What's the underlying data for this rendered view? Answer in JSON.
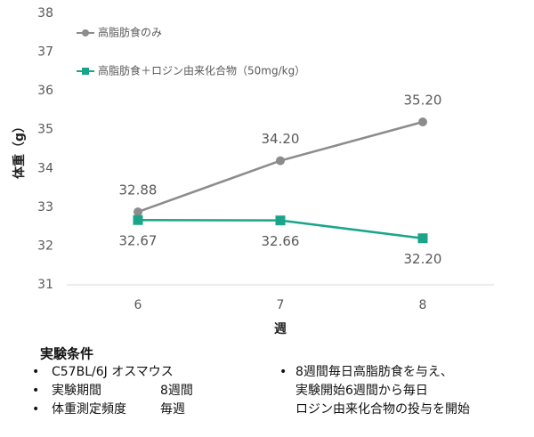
{
  "chart_data": {
    "type": "line",
    "x_label": "週",
    "y_label": "体重（g）",
    "categories": [
      "6",
      "7",
      "8"
    ],
    "series": [
      {
        "name": "高脂肪食のみ",
        "color": "#8c8c8c",
        "marker": "circle",
        "values": [
          32.88,
          34.2,
          35.2
        ],
        "value_labels": [
          "32.88",
          "34.20",
          "35.20"
        ]
      },
      {
        "name": "高脂肪食＋ロジン由来化合物（50mg/kg）",
        "color": "#1aa58a",
        "marker": "square",
        "values": [
          32.67,
          32.66,
          32.2
        ],
        "value_labels": [
          "32.67",
          "32.66",
          "32.20"
        ]
      }
    ],
    "ylim": [
      31,
      38
    ],
    "yticks": [
      31,
      32,
      33,
      34,
      35,
      36,
      37,
      38
    ],
    "grid": false
  },
  "notes": {
    "title": "実験条件",
    "left": [
      [
        "C57BL/6J オスマウス"
      ],
      [
        "実験期間",
        "8週間"
      ],
      [
        "体重測定頻度",
        "毎週"
      ]
    ],
    "right": [
      "8週間毎日高脂肪食を与え、",
      "実験開始6週間から毎日",
      "ロジン由来化合物の投与を開始"
    ]
  }
}
